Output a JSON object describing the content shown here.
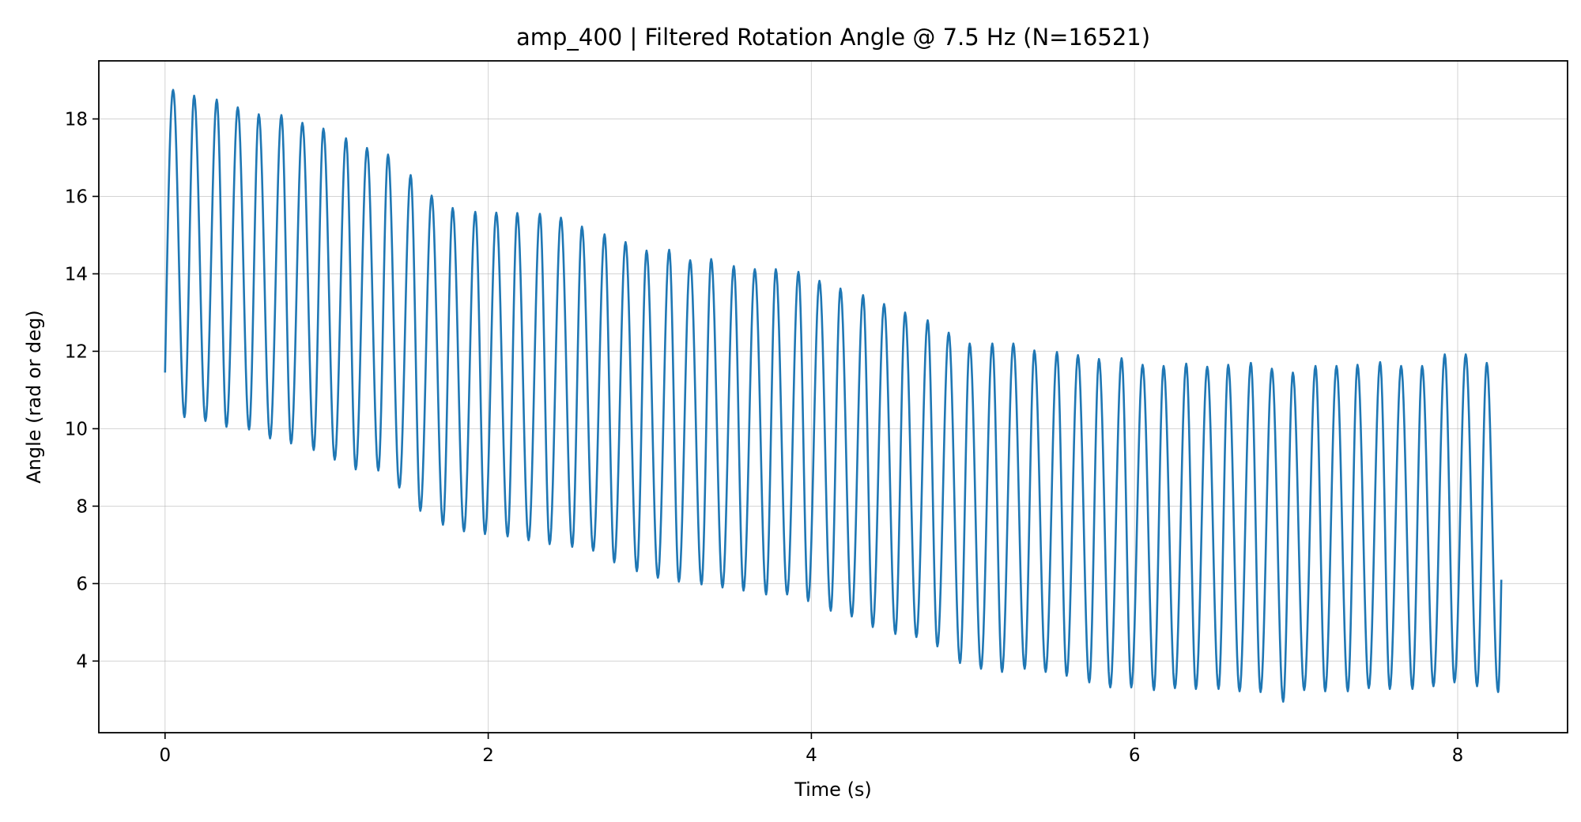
{
  "chart_data": {
    "type": "line",
    "title": "amp_400 | Filtered Rotation Angle @ 7.5 Hz  (N=16521)",
    "xlabel": "Time (s)",
    "ylabel": "Angle (rad or deg)",
    "xlim": [
      -0.41,
      8.68
    ],
    "ylim": [
      2.15,
      19.5
    ],
    "xticks": [
      0,
      2,
      4,
      6,
      8
    ],
    "yticks": [
      4,
      6,
      8,
      10,
      12,
      14,
      16,
      18
    ],
    "grid": true,
    "legend": "none",
    "line_color": "#1f77b4",
    "frequency_hz": 7.5,
    "duration_s": 8.27,
    "start_value": 11.45,
    "end_value": 6.1,
    "series": [
      {
        "peaks": [
          [
            0.05,
            18.75
          ],
          [
            0.18,
            18.6
          ],
          [
            0.32,
            18.5
          ],
          [
            0.45,
            18.3
          ],
          [
            0.58,
            18.12
          ],
          [
            0.72,
            18.1
          ],
          [
            0.85,
            17.9
          ],
          [
            0.98,
            17.75
          ],
          [
            1.12,
            17.5
          ],
          [
            1.25,
            17.25
          ],
          [
            1.38,
            17.08
          ],
          [
            1.52,
            16.55
          ],
          [
            1.65,
            16.02
          ],
          [
            1.78,
            15.7
          ],
          [
            1.92,
            15.6
          ],
          [
            2.05,
            15.58
          ],
          [
            2.18,
            15.57
          ],
          [
            2.32,
            15.55
          ],
          [
            2.45,
            15.45
          ],
          [
            2.58,
            15.22
          ],
          [
            2.72,
            15.02
          ],
          [
            2.85,
            14.82
          ],
          [
            2.98,
            14.6
          ],
          [
            3.12,
            14.62
          ],
          [
            3.25,
            14.35
          ],
          [
            3.38,
            14.38
          ],
          [
            3.52,
            14.2
          ],
          [
            3.65,
            14.12
          ],
          [
            3.78,
            14.12
          ],
          [
            3.92,
            14.05
          ],
          [
            4.05,
            13.82
          ],
          [
            4.18,
            13.62
          ],
          [
            4.32,
            13.45
          ],
          [
            4.45,
            13.22
          ],
          [
            4.58,
            13.0
          ],
          [
            4.72,
            12.8
          ],
          [
            4.85,
            12.48
          ],
          [
            4.98,
            12.2
          ],
          [
            5.12,
            12.2
          ],
          [
            5.25,
            12.2
          ],
          [
            5.38,
            12.02
          ],
          [
            5.52,
            11.98
          ],
          [
            5.65,
            11.9
          ],
          [
            5.78,
            11.8
          ],
          [
            5.92,
            11.82
          ],
          [
            6.05,
            11.65
          ],
          [
            6.18,
            11.62
          ],
          [
            6.32,
            11.68
          ],
          [
            6.45,
            11.6
          ],
          [
            6.58,
            11.65
          ],
          [
            6.72,
            11.7
          ],
          [
            6.85,
            11.55
          ],
          [
            6.98,
            11.45
          ],
          [
            7.12,
            11.62
          ],
          [
            7.25,
            11.62
          ],
          [
            7.38,
            11.65
          ],
          [
            7.52,
            11.72
          ],
          [
            7.65,
            11.62
          ],
          [
            7.78,
            11.62
          ],
          [
            7.92,
            11.92
          ],
          [
            8.05,
            11.92
          ],
          [
            8.18,
            11.7
          ]
        ],
        "troughs": [
          [
            0.12,
            10.3
          ],
          [
            0.25,
            10.2
          ],
          [
            0.38,
            10.05
          ],
          [
            0.52,
            9.98
          ],
          [
            0.65,
            9.75
          ],
          [
            0.78,
            9.62
          ],
          [
            0.92,
            9.45
          ],
          [
            1.05,
            9.2
          ],
          [
            1.18,
            8.95
          ],
          [
            1.32,
            8.92
          ],
          [
            1.45,
            8.48
          ],
          [
            1.58,
            7.88
          ],
          [
            1.72,
            7.52
          ],
          [
            1.85,
            7.35
          ],
          [
            1.98,
            7.28
          ],
          [
            2.12,
            7.22
          ],
          [
            2.25,
            7.12
          ],
          [
            2.38,
            7.02
          ],
          [
            2.52,
            6.95
          ],
          [
            2.65,
            6.85
          ],
          [
            2.78,
            6.55
          ],
          [
            2.92,
            6.32
          ],
          [
            3.05,
            6.15
          ],
          [
            3.18,
            6.05
          ],
          [
            3.32,
            5.98
          ],
          [
            3.45,
            5.9
          ],
          [
            3.58,
            5.82
          ],
          [
            3.72,
            5.72
          ],
          [
            3.85,
            5.72
          ],
          [
            3.98,
            5.55
          ],
          [
            4.12,
            5.3
          ],
          [
            4.25,
            5.15
          ],
          [
            4.38,
            4.88
          ],
          [
            4.52,
            4.7
          ],
          [
            4.65,
            4.62
          ],
          [
            4.78,
            4.38
          ],
          [
            4.92,
            3.95
          ],
          [
            5.05,
            3.8
          ],
          [
            5.18,
            3.72
          ],
          [
            5.32,
            3.8
          ],
          [
            5.45,
            3.72
          ],
          [
            5.58,
            3.62
          ],
          [
            5.72,
            3.45
          ],
          [
            5.85,
            3.32
          ],
          [
            5.98,
            3.32
          ],
          [
            6.12,
            3.25
          ],
          [
            6.25,
            3.3
          ],
          [
            6.38,
            3.28
          ],
          [
            6.52,
            3.28
          ],
          [
            6.65,
            3.22
          ],
          [
            6.78,
            3.2
          ],
          [
            6.92,
            2.95
          ],
          [
            7.05,
            3.25
          ],
          [
            7.18,
            3.22
          ],
          [
            7.32,
            3.22
          ],
          [
            7.45,
            3.3
          ],
          [
            7.58,
            3.28
          ],
          [
            7.72,
            3.28
          ],
          [
            7.85,
            3.35
          ],
          [
            7.98,
            3.45
          ],
          [
            8.12,
            3.35
          ],
          [
            8.25,
            3.2
          ]
        ]
      }
    ]
  }
}
